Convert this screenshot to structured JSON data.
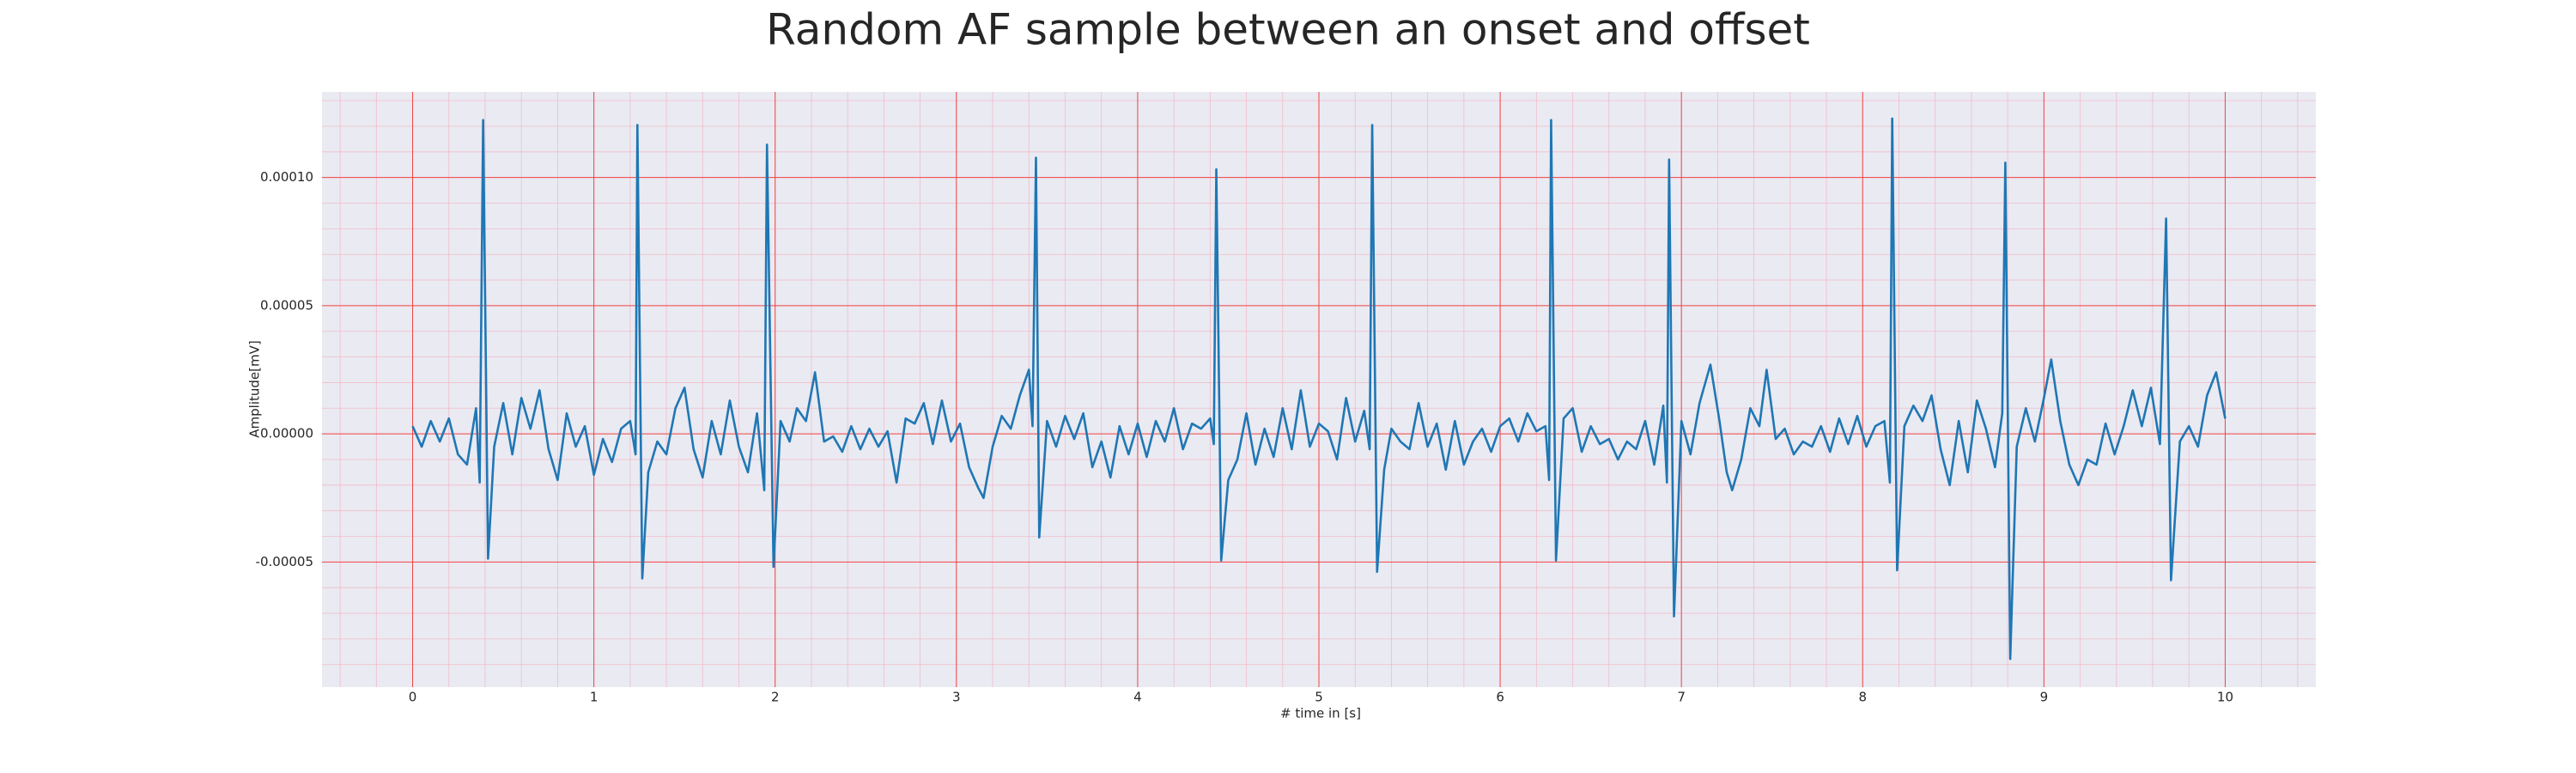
{
  "chart_data": {
    "type": "line",
    "title": "Random AF sample between an onset and offset",
    "x_label": "# time in [s]",
    "y_label": "Amplitude[mV]",
    "color": "#1f77b4",
    "grid": true,
    "minor_grid": true,
    "xlim": [
      -0.5,
      10.5
    ],
    "ylim": [
      -9.88e-05,
      0.0001334
    ],
    "xticks": [
      0,
      1,
      2,
      3,
      4,
      5,
      6,
      7,
      8,
      9,
      10
    ],
    "yticks": [
      {
        "value": -5e-05,
        "label": "-0.00005"
      },
      {
        "value": 0,
        "label": "0.00000"
      },
      {
        "value": 5e-05,
        "label": "0.00005"
      },
      {
        "value": 0.0001,
        "label": "0.00010"
      }
    ],
    "x": [
      0,
      0.05,
      0.1,
      0.15,
      0.2,
      0.25,
      0.3,
      0.35,
      0.37,
      0.389,
      0.416,
      0.45,
      0.5,
      0.55,
      0.6,
      0.65,
      0.7,
      0.75,
      0.8,
      0.85,
      0.9,
      0.95,
      1.0,
      1.05,
      1.1,
      1.15,
      1.2,
      1.23,
      1.24,
      1.267,
      1.3,
      1.35,
      1.4,
      1.45,
      1.5,
      1.55,
      1.6,
      1.65,
      1.7,
      1.75,
      1.8,
      1.85,
      1.9,
      1.94,
      1.955,
      1.991,
      2.03,
      2.08,
      2.12,
      2.17,
      2.22,
      2.27,
      2.32,
      2.37,
      2.42,
      2.47,
      2.52,
      2.57,
      2.62,
      2.67,
      2.72,
      2.77,
      2.82,
      2.87,
      2.92,
      2.97,
      3.02,
      3.07,
      3.12,
      3.15,
      3.2,
      3.25,
      3.3,
      3.35,
      3.4,
      3.42,
      3.439,
      3.457,
      3.5,
      3.55,
      3.6,
      3.65,
      3.7,
      3.75,
      3.8,
      3.85,
      3.9,
      3.95,
      4.0,
      4.05,
      4.1,
      4.15,
      4.2,
      4.25,
      4.3,
      4.35,
      4.4,
      4.42,
      4.434,
      4.461,
      4.5,
      4.55,
      4.6,
      4.65,
      4.7,
      4.75,
      4.8,
      4.85,
      4.9,
      4.95,
      5.0,
      5.05,
      5.1,
      5.15,
      5.2,
      5.25,
      5.28,
      5.294,
      5.321,
      5.36,
      5.4,
      5.45,
      5.5,
      5.55,
      5.6,
      5.65,
      5.7,
      5.75,
      5.8,
      5.85,
      5.9,
      5.95,
      6.0,
      6.05,
      6.1,
      6.15,
      6.2,
      6.25,
      6.27,
      6.281,
      6.308,
      6.35,
      6.4,
      6.45,
      6.5,
      6.55,
      6.6,
      6.65,
      6.7,
      6.75,
      6.8,
      6.85,
      6.9,
      6.92,
      6.932,
      6.959,
      7.0,
      7.05,
      7.1,
      7.16,
      7.21,
      7.25,
      7.28,
      7.33,
      7.38,
      7.43,
      7.47,
      7.52,
      7.57,
      7.62,
      7.67,
      7.72,
      7.77,
      7.82,
      7.87,
      7.92,
      7.97,
      8.02,
      8.07,
      8.12,
      8.15,
      8.163,
      8.19,
      8.23,
      8.28,
      8.33,
      8.38,
      8.43,
      8.48,
      8.53,
      8.58,
      8.63,
      8.68,
      8.73,
      8.77,
      8.787,
      8.814,
      8.85,
      8.9,
      8.95,
      9.0,
      9.04,
      9.09,
      9.14,
      9.19,
      9.24,
      9.29,
      9.34,
      9.39,
      9.44,
      9.49,
      9.54,
      9.59,
      9.64,
      9.674,
      9.701,
      9.75,
      9.8,
      9.85,
      9.9,
      9.95,
      10.0
    ],
    "values": [
      3e-06,
      -5e-06,
      5e-06,
      -3e-06,
      6e-06,
      -8e-06,
      -1.2e-05,
      1e-05,
      -1.9e-05,
      0.0001224,
      -4.87e-05,
      -5e-06,
      1.2e-05,
      -8e-06,
      1.4e-05,
      2e-06,
      1.7e-05,
      -6e-06,
      -1.8e-05,
      8e-06,
      -5e-06,
      3e-06,
      -1.6e-05,
      -2e-06,
      -1.1e-05,
      2e-06,
      5e-06,
      -8e-06,
      0.0001205,
      -5.64e-05,
      -1.5e-05,
      -3e-06,
      -8e-06,
      1e-05,
      1.8e-05,
      -6e-06,
      -1.7e-05,
      5e-06,
      -8e-06,
      1.3e-05,
      -5e-06,
      -1.5e-05,
      8e-06,
      -2.2e-05,
      0.0001128,
      -5.19e-05,
      5e-06,
      -3e-06,
      1e-05,
      5e-06,
      2.4e-05,
      -3e-06,
      -1e-06,
      -7e-06,
      3e-06,
      -6e-06,
      2e-06,
      -5e-06,
      1e-06,
      -1.9e-05,
      6e-06,
      4e-06,
      1.2e-05,
      -4e-06,
      1.3e-05,
      -3e-06,
      4e-06,
      -1.3e-05,
      -2.1e-05,
      -2.5e-05,
      -5e-06,
      7e-06,
      2e-06,
      1.5e-05,
      2.5e-05,
      3e-06,
      0.0001077,
      -4.04e-05,
      5e-06,
      -5e-06,
      7e-06,
      -2e-06,
      8e-06,
      -1.3e-05,
      -3e-06,
      -1.7e-05,
      3e-06,
      -8e-06,
      4e-06,
      -9e-06,
      5e-06,
      -3e-06,
      1e-05,
      -6e-06,
      4e-06,
      2e-06,
      6e-06,
      -4e-06,
      0.0001032,
      -4.94e-05,
      -1.8e-05,
      -1e-05,
      8e-06,
      -1.2e-05,
      2e-06,
      -9e-06,
      1e-05,
      -6e-06,
      1.7e-05,
      -5e-06,
      4e-06,
      1e-06,
      -1e-05,
      1.4e-05,
      -3e-06,
      9e-06,
      -6e-06,
      0.0001205,
      -5.38e-05,
      -1.4e-05,
      2e-06,
      -3e-06,
      -6e-06,
      1.2e-05,
      -5e-06,
      4e-06,
      -1.4e-05,
      5e-06,
      -1.2e-05,
      -3e-06,
      2e-06,
      -7e-06,
      3e-06,
      6e-06,
      -3e-06,
      8e-06,
      1e-06,
      3e-06,
      -1.8e-05,
      0.0001224,
      -4.94e-05,
      6e-06,
      1e-05,
      -7e-06,
      3e-06,
      -4e-06,
      -2e-06,
      -1e-05,
      -3e-06,
      -6e-06,
      5e-06,
      -1.2e-05,
      1.1e-05,
      -1.9e-05,
      0.000107,
      -7.12e-05,
      5e-06,
      -8e-06,
      1.2e-05,
      2.7e-05,
      5e-06,
      -1.5e-05,
      -2.2e-05,
      -1e-05,
      1e-05,
      3e-06,
      2.5e-05,
      -2e-06,
      2e-06,
      -8e-06,
      -3e-06,
      -5e-06,
      3e-06,
      -7e-06,
      6e-06,
      -4e-06,
      7e-06,
      -5e-06,
      3e-06,
      5e-06,
      -1.9e-05,
      0.000123,
      -5.32e-05,
      3e-06,
      1.1e-05,
      5e-06,
      1.5e-05,
      -6e-06,
      -2e-05,
      5e-06,
      -1.5e-05,
      1.3e-05,
      2e-06,
      -1.3e-05,
      8e-06,
      0.0001058,
      -8.78e-05,
      -5e-06,
      1e-05,
      -3e-06,
      1.4e-05,
      2.9e-05,
      5e-06,
      -1.2e-05,
      -2e-05,
      -1e-05,
      -1.2e-05,
      4e-06,
      -8e-06,
      3e-06,
      1.7e-05,
      3e-06,
      1.8e-05,
      -4e-06,
      8.4e-05,
      -5.71e-05,
      -3e-06,
      3e-06,
      -5e-06,
      1.5e-05,
      2.4e-05,
      6e-06
    ]
  }
}
